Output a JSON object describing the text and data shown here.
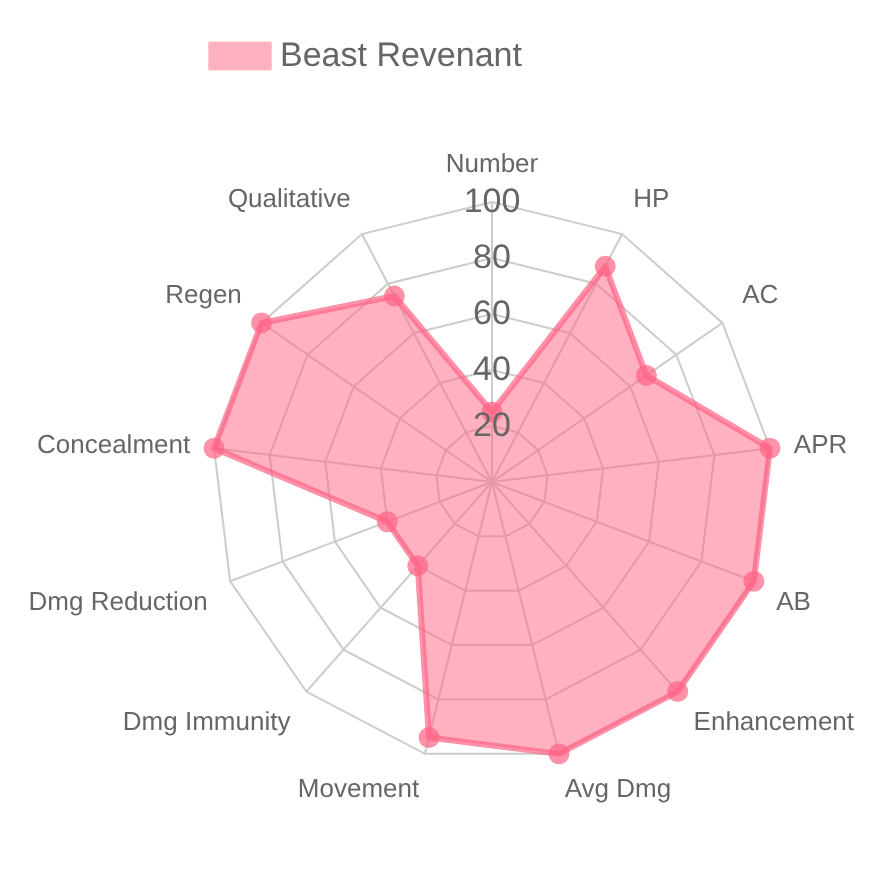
{
  "chart_data": {
    "type": "radar",
    "categories": [
      "Number",
      "HP",
      "AC",
      "APR",
      "AB",
      "Enhancement",
      "Avg Dmg",
      "Movement",
      "Dmg Immunity",
      "Dmg Reduction",
      "Concealment",
      "Regen",
      "Qualitative"
    ],
    "series": [
      {
        "name": "Beast Revenant",
        "color": "#ff6384",
        "values": [
          25,
          87,
          67,
          100,
          100,
          100,
          100,
          94,
          40,
          40,
          100,
          100,
          75
        ]
      }
    ],
    "ylim": [
      0,
      100
    ],
    "yticks": [
      20,
      40,
      60,
      80,
      100
    ],
    "grid": true,
    "legend": "top",
    "marker": "circle"
  }
}
